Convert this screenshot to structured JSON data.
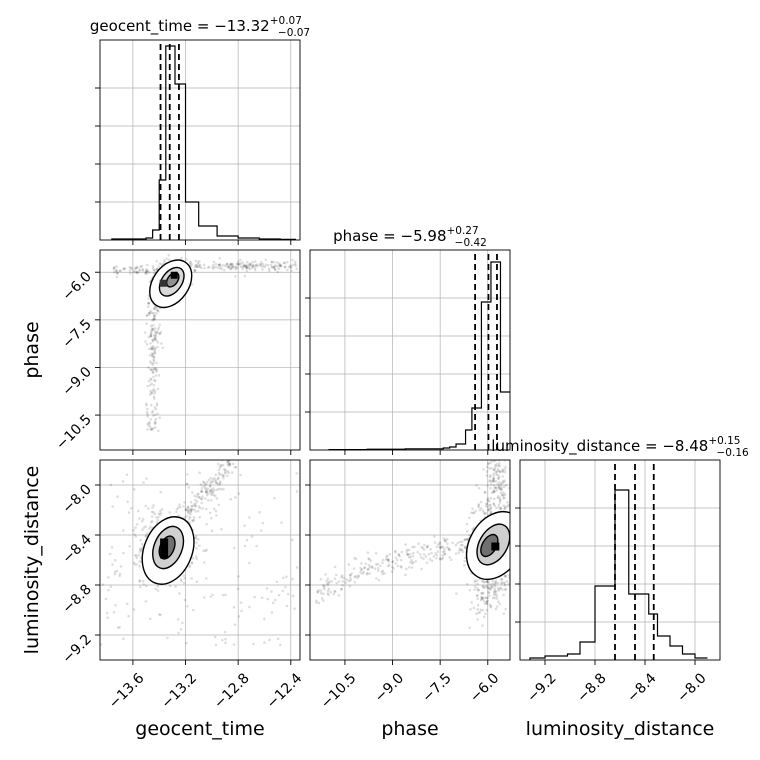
{
  "chart_data": {
    "type": "corner",
    "parameters": [
      "geocent_time",
      "phase",
      "luminosity_distance"
    ],
    "titles": [
      {
        "param": "geocent_time",
        "lhs": "geocent_time = ",
        "median": "−13.32",
        "plus": "+0.07",
        "minus": "−0.07"
      },
      {
        "param": "phase",
        "lhs": "phase = ",
        "median": "−5.98",
        "plus": "+0.27",
        "minus": "−0.42"
      },
      {
        "param": "luminosity_distance",
        "lhs": "luminosity_distance = ",
        "median": "−8.48",
        "plus": "+0.15",
        "minus": "−0.16"
      }
    ],
    "axis_labels": {
      "x": [
        "geocent_time",
        "phase",
        "luminosity_distance"
      ],
      "y": [
        "phase",
        "luminosity_distance"
      ]
    },
    "ranges": {
      "geocent_time": [
        -13.85,
        -12.33
      ],
      "phase": [
        -11.6,
        -5.3
      ],
      "luminosity_distance": [
        -9.4,
        -7.8
      ]
    },
    "ticks": {
      "geocent_time": [
        -13.6,
        -13.2,
        -12.8,
        -12.4
      ],
      "phase": [
        -10.5,
        -9.0,
        -7.5,
        -6.0
      ],
      "luminosity_distance": [
        -9.2,
        -8.8,
        -8.4,
        -8.0
      ]
    },
    "tick_labels": {
      "geocent_time": [
        "−13.6",
        "−13.2",
        "−12.8",
        "−12.4"
      ],
      "phase": [
        "−10.5",
        "−9.0",
        "−7.5",
        "−6.0"
      ],
      "luminosity_distance": [
        "−9.2",
        "−8.8",
        "−8.4",
        "−8.0"
      ]
    },
    "quantiles": {
      "geocent_time": [
        -13.39,
        -13.32,
        -13.25
      ],
      "phase": [
        -6.4,
        -5.98,
        -5.71
      ],
      "luminosity_distance": [
        -8.64,
        -8.48,
        -8.33
      ]
    },
    "histograms": {
      "geocent_time": [
        0.005,
        0.01,
        0.05,
        0.3,
        0.97,
        0.78,
        0.19,
        0.07,
        0.02,
        0.01,
        0.005,
        0.003
      ],
      "phase": [
        0.002,
        0.004,
        0.006,
        0.01,
        0.015,
        0.03,
        0.1,
        0.21,
        0.74,
        0.94,
        0.29
      ],
      "luminosity_distance": [
        0.01,
        0.02,
        0.03,
        0.09,
        0.37,
        0.85,
        0.33,
        0.23,
        0.12,
        0.07,
        0.03,
        0.01
      ]
    },
    "histogram_edges": {
      "geocent_time": [
        -13.76,
        -13.5,
        -13.45,
        -13.4,
        -13.35,
        -13.28,
        -13.2,
        -13.1,
        -12.96,
        -12.8,
        -12.64,
        -12.48,
        -12.36
      ],
      "phase": [
        -11.0,
        -9.8,
        -8.6,
        -7.4,
        -7.2,
        -7.0,
        -6.7,
        -6.5,
        -6.2,
        -5.9,
        -5.6,
        -5.3
      ],
      "luminosity_distance": [
        -9.32,
        -9.2,
        -9.02,
        -8.92,
        -8.8,
        -8.64,
        -8.53,
        -8.37,
        -8.3,
        -8.2,
        -8.1,
        -8.0,
        -7.9
      ]
    },
    "contour_centers": {
      "phase_vs_geocent_time": {
        "x": -13.32,
        "y": -6.0
      },
      "luminosity_distance_vs_geocent_time": {
        "x": -13.34,
        "y": -8.5
      },
      "luminosity_distance_vs_phase": {
        "x": -5.95,
        "y": -8.5
      }
    },
    "grid": true,
    "legend": "none"
  }
}
